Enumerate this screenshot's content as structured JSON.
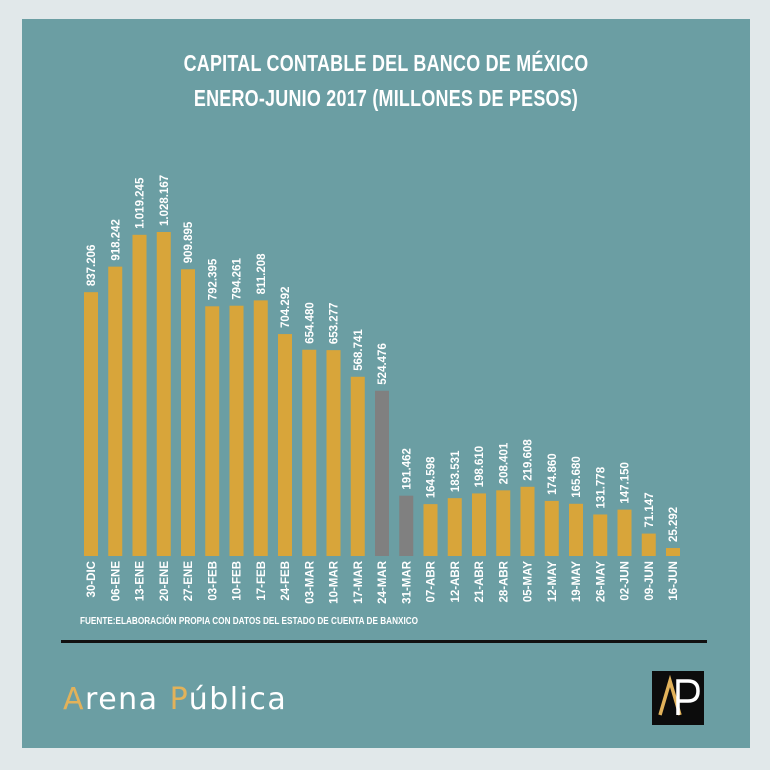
{
  "title_line1": "CAPITAL CONTABLE DEL BANCO DE MÉXICO",
  "title_line2": "ENERO-JUNIO 2017 (MILLONES DE PESOS)",
  "source": "FUENTE:ELABORACIÓN PROPIA CON DATOS DEL ESTADO DE CUENTA DE BANXICO",
  "brand": {
    "part1": "A",
    "part2": "rena ",
    "part3": "P",
    "part4": "ública"
  },
  "logo": {
    "letters": "AP"
  },
  "colors": {
    "background": "#6b9ea3",
    "bar": "#d8a53a",
    "bar_highlight": "#808080",
    "text": "#ffffff",
    "brand_accent": "#e2b25a"
  },
  "chart_data": {
    "type": "bar",
    "title": "CAPITAL CONTABLE DEL BANCO DE MÉXICO ENERO-JUNIO 2017 (MILLONES DE PESOS)",
    "categories": [
      "30-DIC",
      "06-ENE",
      "13-ENE",
      "20-ENE",
      "27-ENE",
      "03-FEB",
      "10-FEB",
      "17-FEB",
      "24-FEB",
      "03-MAR",
      "10-MAR",
      "17-MAR",
      "24-MAR",
      "31-MAR",
      "07-ABR",
      "12-ABR",
      "21-ABR",
      "28-ABR",
      "05-MAY",
      "12-MAY",
      "19-MAY",
      "26-MAY",
      "02-JUN",
      "09-JUN",
      "16-JUN"
    ],
    "values": [
      837206,
      918242,
      1019245,
      1028167,
      909895,
      792395,
      794261,
      811208,
      704292,
      654480,
      653277,
      568741,
      524476,
      191462,
      164598,
      183531,
      198610,
      208401,
      219608,
      174860,
      165680,
      131778,
      147150,
      71147,
      25292
    ],
    "value_labels": [
      "837.206",
      "918.242",
      "1.019.245",
      "1.028.167",
      "909.895",
      "792.395",
      "794.261",
      "811.208",
      "704.292",
      "654.480",
      "653.277",
      "568.741",
      "524.476",
      "191.462",
      "164.598",
      "183.531",
      "198.610",
      "208.401",
      "219.608",
      "174.860",
      "165.680",
      "131.778",
      "147.150",
      "71.147",
      "25.292"
    ],
    "highlighted": [
      false,
      false,
      false,
      false,
      false,
      false,
      false,
      false,
      false,
      false,
      false,
      false,
      true,
      true,
      false,
      false,
      false,
      false,
      false,
      false,
      false,
      false,
      false,
      false,
      false
    ],
    "ylim": [
      0,
      1028167
    ],
    "grid": false,
    "legend": "none",
    "xlabel": "",
    "ylabel": ""
  }
}
